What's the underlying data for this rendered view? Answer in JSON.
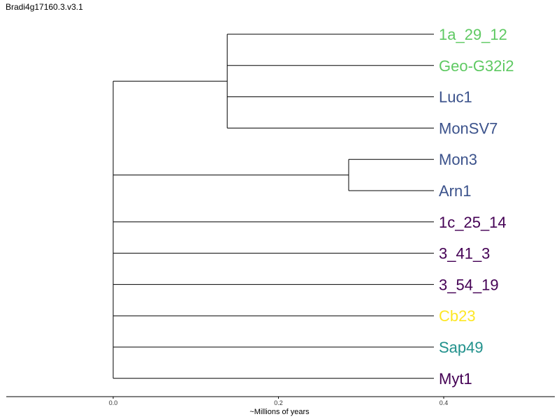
{
  "chart_data": {
    "type": "dendrogram",
    "title": "Bradi4g17160.3.v3.1",
    "xlabel": "~Millions of years",
    "xlim": [
      -0.13,
      0.53
    ],
    "x_ticks": [
      0.0,
      0.2,
      0.4
    ],
    "x_tick_labels": [
      "0.0",
      "0.2",
      "0.4"
    ],
    "leaves": [
      {
        "name": "1a_29_12",
        "color": "#5ec962"
      },
      {
        "name": "Geo-G32i2",
        "color": "#5ec962"
      },
      {
        "name": "Luc1",
        "color": "#3b528b"
      },
      {
        "name": "MonSV7",
        "color": "#3b528b"
      },
      {
        "name": "Mon3",
        "color": "#3b528b"
      },
      {
        "name": "Arn1",
        "color": "#3b528b"
      },
      {
        "name": "1c_25_14",
        "color": "#440154"
      },
      {
        "name": "3_41_3",
        "color": "#440154"
      },
      {
        "name": "3_54_19",
        "color": "#440154"
      },
      {
        "name": "Cb23",
        "color": "#fde725"
      },
      {
        "name": "Sap49",
        "color": "#21918c"
      },
      {
        "name": "Myt1",
        "color": "#440154"
      }
    ],
    "leaf_x": 0.39,
    "tree": {
      "x": 0.0,
      "children": [
        {
          "x": 0.138,
          "children": [
            {
              "leaf": 0
            },
            {
              "leaf": 1
            },
            {
              "leaf": 2
            },
            {
              "leaf": 3
            }
          ]
        },
        {
          "x": 0.285,
          "children": [
            {
              "leaf": 4
            },
            {
              "leaf": 5
            }
          ]
        },
        {
          "leaf": 6
        },
        {
          "leaf": 7
        },
        {
          "leaf": 8
        },
        {
          "leaf": 9
        },
        {
          "leaf": 10
        },
        {
          "leaf": 11
        }
      ]
    }
  }
}
